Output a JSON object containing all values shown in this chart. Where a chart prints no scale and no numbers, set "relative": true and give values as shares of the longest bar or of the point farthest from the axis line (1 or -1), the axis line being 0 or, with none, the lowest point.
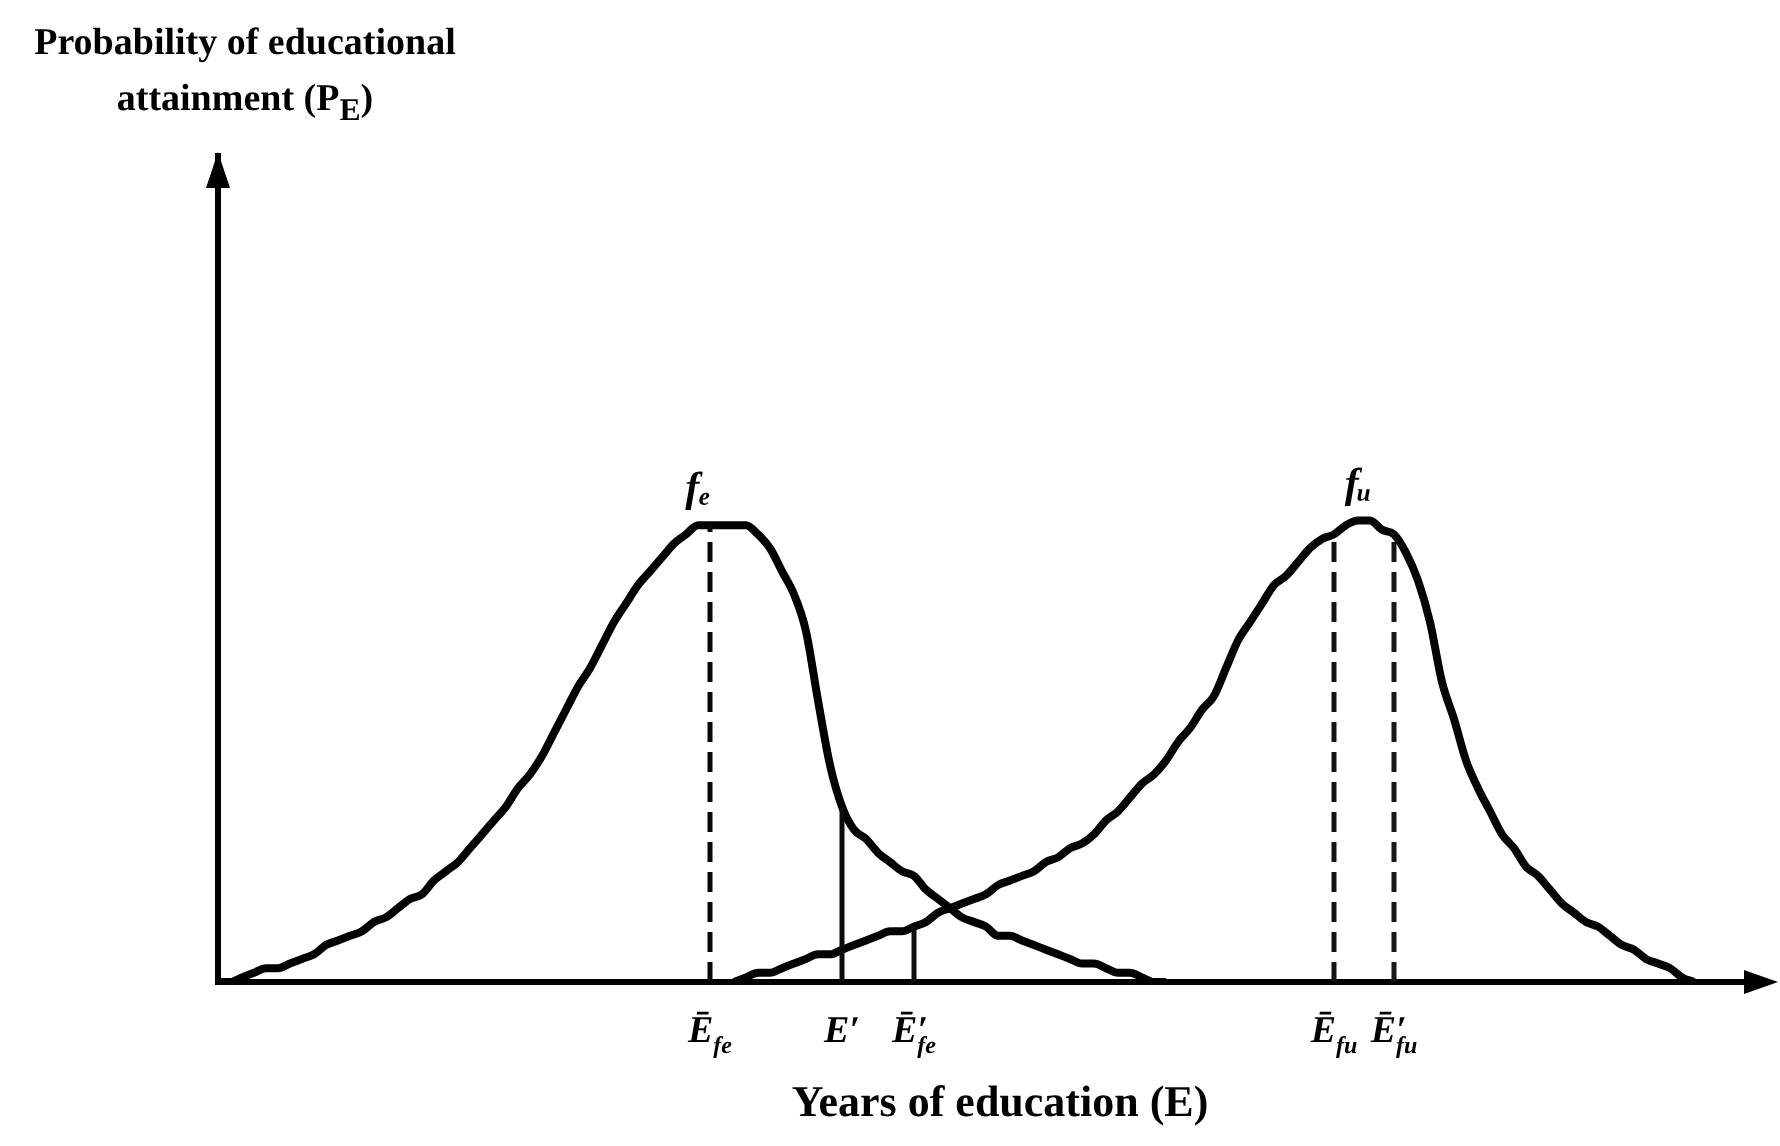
{
  "chart_data": {
    "type": "line",
    "relative": true,
    "annotations": [
      "Probability of educational attainment (P$_{E}$)"
    ],
    "xlabel": "Years of education (E)",
    "categories": [
      null,
      null,
      null,
      null,
      null,
      null,
      null,
      null,
      null,
      null,
      null,
      null,
      null,
      null,
      null,
      null,
      null,
      null,
      null,
      null,
      null,
      null,
      null,
      null,
      null,
      null,
      null,
      null,
      null,
      null,
      null,
      null,
      null,
      null,
      null,
      null,
      null,
      null,
      null,
      null,
      null,
      "Ē$_{fe}$",
      null,
      null,
      null,
      null,
      null,
      null,
      null,
      null,
      null,
      null,
      "E′",
      null,
      null,
      null,
      null,
      null,
      "Ē′$_{fe}$",
      null,
      null,
      null,
      null,
      null,
      null,
      null,
      null,
      null,
      null,
      null,
      null,
      null,
      null,
      null,
      null,
      null,
      null,
      null,
      null,
      null,
      null,
      null,
      null,
      null,
      null,
      null,
      null,
      null,
      null,
      null,
      null,
      null,
      null,
      "Ē$_{fu}$",
      null,
      null,
      null,
      null,
      "Ē′$_{fu}$",
      null,
      null,
      null,
      null,
      null,
      null,
      null,
      null,
      null,
      null,
      null,
      null,
      null,
      null,
      null,
      null,
      null,
      null,
      null,
      null,
      null,
      null,
      null,
      null,
      null,
      null,
      null,
      null,
      null,
      null
    ],
    "series": [
      {
        "name": "fₑ",
        "color": "#000000",
        "values": [
          0,
          0,
          0.01,
          0.02,
          0.03,
          0.03,
          0.04,
          0.05,
          0.06,
          0.08,
          0.09,
          0.1,
          0.11,
          0.13,
          0.14,
          0.16,
          0.18,
          0.19,
          0.22,
          0.24,
          0.26,
          0.29,
          0.32,
          0.35,
          0.38,
          0.42,
          0.45,
          0.49,
          0.54,
          0.59,
          0.64,
          0.68,
          0.73,
          0.78,
          0.82,
          0.86,
          0.89,
          0.92,
          0.95,
          0.97,
          0.99,
          0.99,
          0.99,
          0.99,
          0.99,
          0.97,
          0.94,
          0.89,
          0.84,
          0.76,
          0.61,
          0.47,
          0.38,
          0.33,
          0.31,
          0.28,
          0.26,
          0.24,
          0.23,
          0.2,
          0.18,
          0.16,
          0.14,
          0.13,
          0.12,
          0.1,
          0.1,
          0.09,
          0.08,
          0.07,
          0.06,
          0.05,
          0.04,
          0.04,
          0.03,
          0.02,
          0.02,
          0.01,
          0,
          0,
          null,
          null,
          null,
          null,
          null,
          null,
          null,
          null,
          null,
          null,
          null,
          null,
          null,
          null,
          null,
          null,
          null,
          null,
          null,
          null,
          null,
          null,
          null,
          null,
          null,
          null,
          null,
          null,
          null,
          null,
          null,
          null,
          null,
          null,
          null,
          null,
          null,
          null,
          null,
          null,
          null,
          null,
          null,
          null,
          null,
          null,
          null,
          null,
          null
        ]
      },
      {
        "name": "fᵤ",
        "color": "#040404",
        "values": [
          null,
          null,
          null,
          null,
          null,
          null,
          null,
          null,
          null,
          null,
          null,
          null,
          null,
          null,
          null,
          null,
          null,
          null,
          null,
          null,
          null,
          null,
          null,
          null,
          null,
          null,
          null,
          null,
          null,
          null,
          null,
          null,
          null,
          null,
          null,
          null,
          null,
          null,
          null,
          null,
          null,
          null,
          null,
          0,
          0.01,
          0.02,
          0.02,
          0.03,
          0.04,
          0.05,
          0.06,
          0.06,
          0.07,
          0.08,
          0.09,
          0.1,
          0.11,
          0.11,
          0.12,
          0.13,
          0.15,
          0.16,
          0.17,
          0.18,
          0.19,
          0.21,
          0.22,
          0.23,
          0.24,
          0.26,
          0.27,
          0.29,
          0.3,
          0.32,
          0.35,
          0.37,
          0.4,
          0.43,
          0.45,
          0.48,
          0.52,
          0.55,
          0.59,
          0.62,
          0.68,
          0.74,
          0.78,
          0.82,
          0.86,
          0.88,
          0.91,
          0.94,
          0.96,
          0.97,
          0.99,
          1,
          1,
          0.98,
          0.97,
          0.93,
          0.87,
          0.78,
          0.65,
          0.57,
          0.48,
          0.42,
          0.37,
          0.32,
          0.29,
          0.25,
          0.23,
          0.2,
          0.17,
          0.15,
          0.13,
          0.12,
          0.1,
          0.08,
          0.07,
          0.05,
          0.04,
          0.03,
          0.01,
          0,
          null,
          null,
          null,
          null,
          null
        ]
      },
      {
        "type": "line",
        "color": "#080808",
        "line_style": "dashed",
        "x": [
          "Ē$_{fe}$",
          "Ē$_{fe}$"
        ],
        "values": [
          0,
          0.99
        ]
      },
      {
        "type": "line",
        "color": "#0c0c0c",
        "line_style": "solid",
        "x": [
          "E′",
          "E′"
        ],
        "values": [
          0,
          0.38
        ]
      },
      {
        "type": "line",
        "color": "#101010",
        "line_style": "solid",
        "x": [
          "Ē′$_{fe}$",
          "Ē′$_{fe}$"
        ],
        "values": [
          0,
          0.12
        ]
      },
      {
        "type": "line",
        "color": "#141414",
        "line_style": "dashed",
        "x": [
          "Ē$_{fu}$",
          "Ē$_{fu}$"
        ],
        "values": [
          0,
          0.97
        ]
      },
      {
        "type": "line",
        "color": "#181818",
        "line_style": "dashed",
        "x": [
          "Ē′$_{fu}$",
          "Ē′$_{fu}$"
        ],
        "values": [
          0,
          0.97
        ]
      }
    ]
  }
}
